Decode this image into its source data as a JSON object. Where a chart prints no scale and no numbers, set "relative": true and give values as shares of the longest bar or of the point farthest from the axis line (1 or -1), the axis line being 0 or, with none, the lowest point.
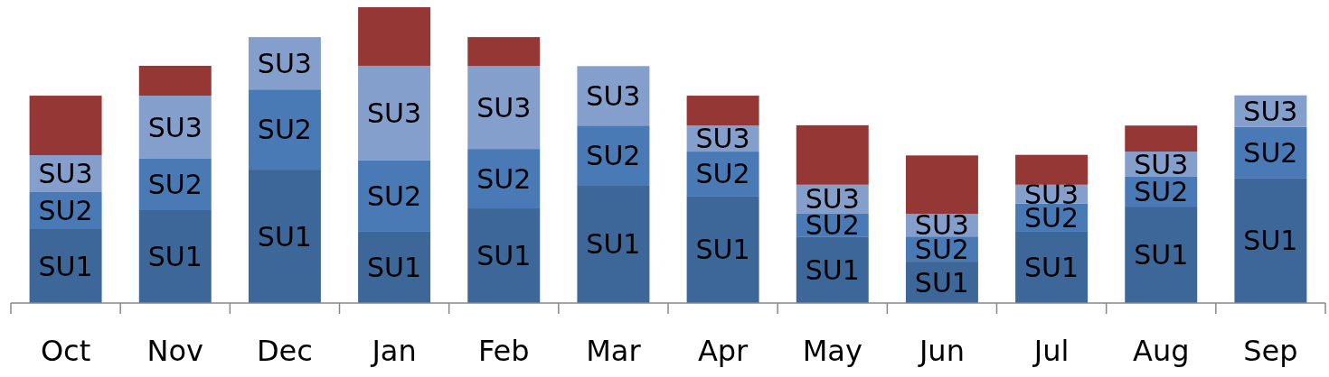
{
  "chart_data": {
    "type": "bar",
    "stacked": true,
    "relative": true,
    "categories": [
      "Oct",
      "Nov",
      "Dec",
      "Jan",
      "Feb",
      "Mar",
      "Apr",
      "May",
      "Jun",
      "Jul",
      "Aug",
      "Sep"
    ],
    "series": [
      {
        "name": "SU1",
        "color": "#3d6699",
        "values": [
          0.25,
          0.314,
          0.451,
          0.241,
          0.32,
          0.399,
          0.36,
          0.223,
          0.14,
          0.241,
          0.326,
          0.421
        ]
      },
      {
        "name": "SU2",
        "color": "#4a7ab5",
        "values": [
          0.125,
          0.174,
          0.271,
          0.241,
          0.201,
          0.201,
          0.152,
          0.079,
          0.085,
          0.095,
          0.101,
          0.174
        ]
      },
      {
        "name": "SU3",
        "color": "#849fcc",
        "values": [
          0.125,
          0.213,
          0.177,
          0.32,
          0.28,
          0.201,
          0.088,
          0.098,
          0.076,
          0.064,
          0.085,
          0.107
        ]
      },
      {
        "color": "#953735",
        "values": [
          0.201,
          0.101,
          null,
          0.198,
          0.098,
          null,
          0.101,
          0.201,
          0.198,
          0.101,
          0.088,
          null
        ]
      }
    ]
  }
}
